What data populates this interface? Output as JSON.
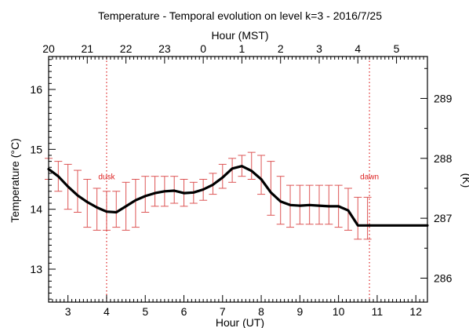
{
  "chart_data": {
    "type": "line",
    "title": "Temperature - Temporal evolution on level k=3 - 2016/7/25",
    "xlabel": "Hour (UT)",
    "x2label": "Hour (MST)",
    "ylabel": "Temperature (°C)",
    "y2label": "(K)",
    "xlim": [
      2.5,
      12.3
    ],
    "ylim": [
      12.45,
      16.55
    ],
    "y2lim": [
      285.6,
      289.7
    ],
    "grid": false,
    "x_ticks": [
      3,
      4,
      5,
      6,
      7,
      8,
      9,
      10,
      11,
      12
    ],
    "x_tick_labels": [
      "3",
      "4",
      "5",
      "6",
      "7",
      "8",
      "9",
      "10",
      "11",
      "12"
    ],
    "top_ticks": [
      2.5,
      3.5,
      4.5,
      5.5,
      6.5,
      7.5,
      8.5,
      9.5,
      10.5,
      11.5
    ],
    "top_tick_labels": [
      "20",
      "21",
      "22",
      "23",
      "0",
      "1",
      "2",
      "3",
      "4",
      "5"
    ],
    "y_ticks": [
      13,
      14,
      15,
      16
    ],
    "y_tick_labels": [
      "13",
      "14",
      "15",
      "16"
    ],
    "y2_ticks": [
      286,
      287,
      288,
      289
    ],
    "y2_tick_labels": [
      "286",
      "287",
      "288",
      "289"
    ],
    "series": [
      {
        "color": "#000000",
        "x": [
          2.5,
          2.75,
          3.0,
          3.25,
          3.5,
          3.75,
          4.0,
          4.25,
          4.5,
          4.75,
          5.0,
          5.25,
          5.5,
          5.75,
          6.0,
          6.25,
          6.5,
          6.75,
          7.0,
          7.25,
          7.5,
          7.75,
          8.0,
          8.25,
          8.5,
          8.75,
          9.0,
          9.25,
          9.5,
          9.75,
          10.0,
          10.25,
          10.5,
          10.75,
          11.0,
          11.25,
          11.5,
          11.75,
          12.0,
          12.3
        ],
        "y": [
          14.67,
          14.55,
          14.38,
          14.23,
          14.12,
          14.03,
          13.96,
          13.95,
          14.05,
          14.15,
          14.22,
          14.27,
          14.3,
          14.31,
          14.27,
          14.28,
          14.33,
          14.41,
          14.53,
          14.68,
          14.72,
          14.64,
          14.5,
          14.28,
          14.13,
          14.07,
          14.06,
          14.07,
          14.06,
          14.05,
          14.05,
          13.98,
          13.73,
          13.73,
          13.73,
          13.73,
          13.73,
          13.73,
          13.73,
          13.73
        ],
        "err_low": [
          14.5,
          14.3,
          14.0,
          13.95,
          13.7,
          13.65,
          13.65,
          13.7,
          13.65,
          13.7,
          13.95,
          14.05,
          14.05,
          14.1,
          14.05,
          14.1,
          14.15,
          14.25,
          14.35,
          14.45,
          14.55,
          14.5,
          14.25,
          13.9,
          13.75,
          13.7,
          13.75,
          13.75,
          13.75,
          13.75,
          13.7,
          13.65,
          13.5,
          13.5
        ],
        "err_high": [
          14.85,
          14.8,
          14.75,
          14.65,
          14.5,
          14.35,
          14.3,
          14.3,
          14.45,
          14.5,
          14.55,
          14.55,
          14.55,
          14.55,
          14.5,
          14.45,
          14.5,
          14.6,
          14.75,
          14.85,
          14.9,
          14.95,
          14.9,
          14.8,
          14.55,
          14.4,
          14.4,
          14.4,
          14.4,
          14.4,
          14.4,
          14.35,
          14.2,
          14.2
        ]
      }
    ],
    "annotations": [
      {
        "text": "dusk",
        "x": 4.0,
        "y": 14.5,
        "color": "#dd2222"
      },
      {
        "text": "dawn",
        "x": 10.8,
        "y": 14.5,
        "color": "#dd2222"
      }
    ],
    "vlines": [
      {
        "x": 4.0,
        "color": "#dd2222",
        "style": "dotted"
      },
      {
        "x": 10.8,
        "color": "#dd2222",
        "style": "dotted"
      }
    ],
    "errorbar_color": "#dd5555"
  }
}
